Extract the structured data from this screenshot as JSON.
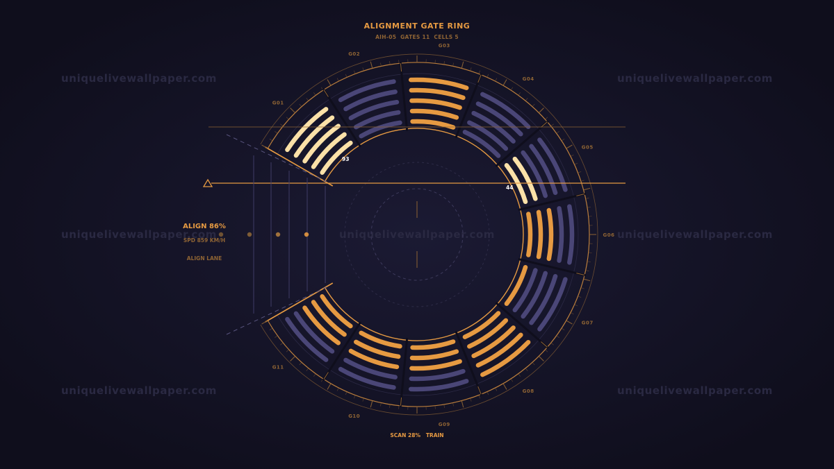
{
  "header": {
    "title": "ALIGNMENT GATE RING",
    "subtitle": "AIH-05  GATES 11  CELLS 5"
  },
  "gates": [
    {
      "label": "G01",
      "state": "bright"
    },
    {
      "label": "G02",
      "state": "dim"
    },
    {
      "label": "G03",
      "state": "accent",
      "cells": [
        "accent",
        "accent",
        "accent",
        "accent",
        "accent"
      ]
    },
    {
      "label": "G04",
      "state": "dim"
    },
    {
      "label": "G05",
      "state": "mixed",
      "cells": [
        "bright",
        "bright",
        "dim",
        "dim",
        "dim"
      ]
    },
    {
      "label": "G06",
      "state": "mixed",
      "cells": [
        "accent",
        "accent",
        "accent",
        "dim",
        "dim"
      ]
    },
    {
      "label": "G07",
      "state": "mixed",
      "cells": [
        "accent",
        "dim",
        "dim",
        "dim",
        "dim"
      ]
    },
    {
      "label": "G08",
      "state": "accent"
    },
    {
      "label": "G09",
      "state": "mixed",
      "cells": [
        "accent",
        "accent",
        "accent",
        "dim",
        "dim"
      ]
    },
    {
      "label": "G10",
      "state": "mixed",
      "cells": [
        "accent",
        "accent",
        "accent",
        "dim",
        "dim"
      ]
    },
    {
      "label": "G11",
      "state": "mixed",
      "cells": [
        "accent",
        "accent",
        "accent",
        "dim",
        "dim"
      ]
    }
  ],
  "markers": {
    "value_left": "93",
    "value_right": "44"
  },
  "readout": {
    "align": "ALIGN 86%",
    "speed": "SPD 859 KM/H",
    "lane": "ALIGN LANE"
  },
  "footer": {
    "scan": "SCAN 28%",
    "mode": "TRAIN"
  },
  "watermark": "uniquelivewallpaper.com",
  "colors": {
    "background": "#141324",
    "accent": "#e69a42",
    "bright": "#fbe1a8",
    "dim": "#4a4677",
    "label": "#8f6434"
  }
}
